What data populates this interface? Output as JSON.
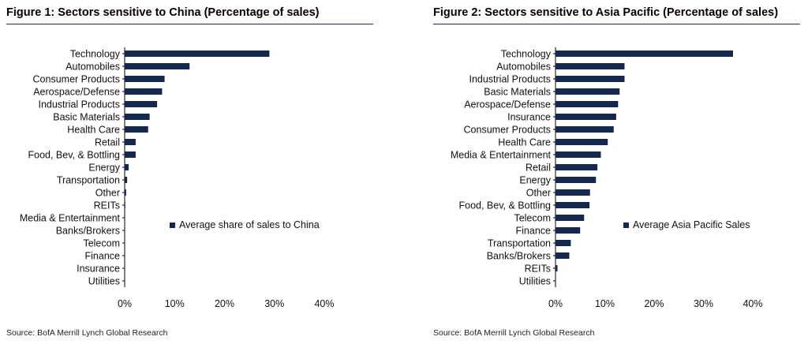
{
  "figures": [
    {
      "title": "Figure 1: Sectors sensitive to China (Percentage of sales)",
      "source": "Source: BofA Merrill Lynch Global Research"
    },
    {
      "title": "Figure 2: Sectors sensitive to Asia Pacific (Percentage of sales)",
      "source": "Source: BofA Merrill Lynch Global Research"
    }
  ],
  "chart_data": [
    {
      "type": "bar",
      "orientation": "horizontal",
      "title": "Figure 1: Sectors sensitive to China (Percentage of sales)",
      "categories": [
        "Technology",
        "Automobiles",
        "Consumer Products",
        "Aerospace/Defense",
        "Industrial Products",
        "Basic Materials",
        "Health Care",
        "Retail",
        "Food, Bev, & Bottling",
        "Energy",
        "Transportation",
        "Other",
        "REITs",
        "Media & Entertainment",
        "Banks/Brokers",
        "Telecom",
        "Finance",
        "Insurance",
        "Utilities"
      ],
      "series": [
        {
          "name": "Average share of sales to China",
          "values": [
            29.0,
            13.0,
            8.0,
            7.5,
            6.5,
            5.0,
            4.7,
            2.2,
            2.2,
            0.8,
            0.5,
            0.3,
            0.1,
            0.0,
            0.0,
            0.0,
            0.0,
            0.0,
            0.0
          ]
        }
      ],
      "xlim": [
        0,
        40
      ],
      "xticks": [
        "0%",
        "10%",
        "20%",
        "30%",
        "40%"
      ],
      "grid": false,
      "legend": "right-center",
      "bar_color": "#14284b"
    },
    {
      "type": "bar",
      "orientation": "horizontal",
      "title": "Figure 2: Sectors sensitive to Asia Pacific (Percentage of sales)",
      "categories": [
        "Technology",
        "Automobiles",
        "Industrial Products",
        "Basic Materials",
        "Aerospace/Defense",
        "Insurance",
        "Consumer Products",
        "Health Care",
        "Media & Entertainment",
        "Retail",
        "Energy",
        "Other",
        "Food, Bev, & Bottling",
        "Telecom",
        "Finance",
        "Transportation",
        "Banks/Brokers",
        "REITs",
        "Utilities"
      ],
      "series": [
        {
          "name": "Average Asia Pacific Sales",
          "values": [
            36.0,
            14.0,
            14.0,
            13.0,
            12.7,
            12.3,
            11.8,
            10.6,
            9.2,
            8.5,
            8.2,
            7.0,
            6.9,
            5.8,
            5.0,
            3.1,
            2.8,
            0.4,
            0.0
          ]
        }
      ],
      "xlim": [
        0,
        40
      ],
      "xticks": [
        "0%",
        "10%",
        "20%",
        "30%",
        "40%"
      ],
      "grid": false,
      "legend": "right-center",
      "bar_color": "#14284b"
    }
  ]
}
